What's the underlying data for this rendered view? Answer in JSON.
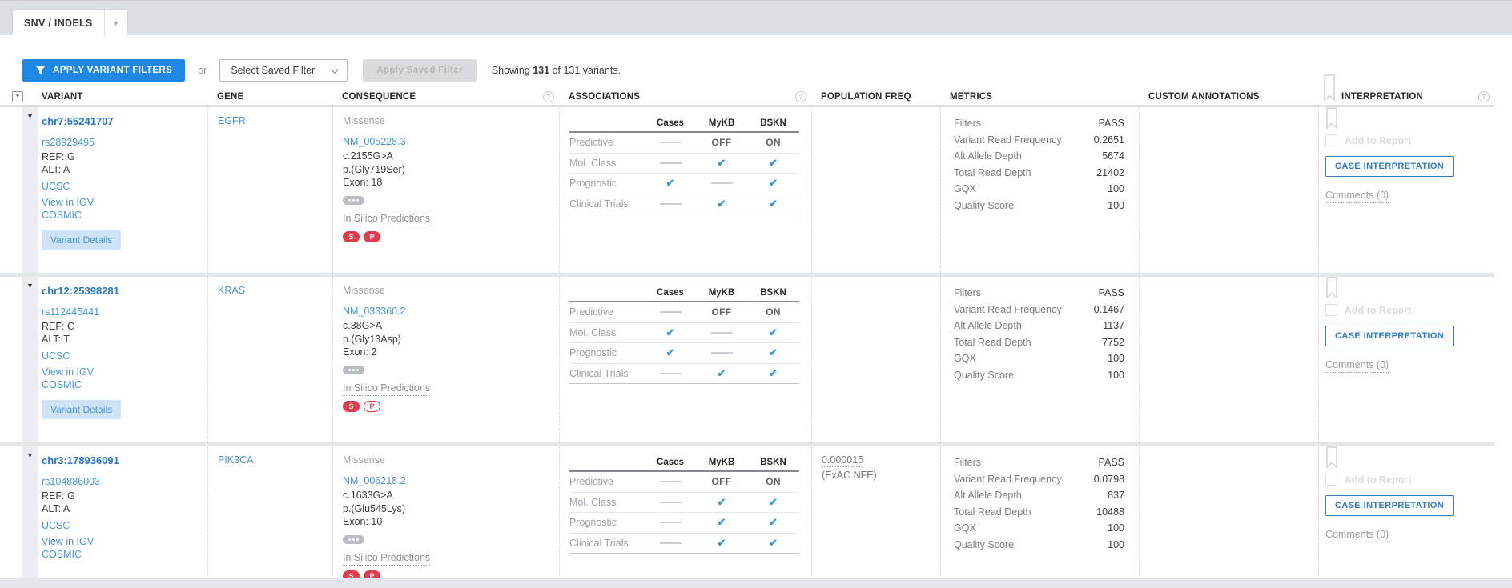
{
  "colors": {
    "accent-blue": "#1e88e5",
    "link-blue": "#4796d8",
    "locus-blue": "#2677c8",
    "check-blue": "#3598db",
    "badge-red": "#e23b4e"
  },
  "tab": {
    "label": "SNV / INDELS"
  },
  "filter_bar": {
    "apply_filters_label": "APPLY VARIANT FILTERS",
    "or_label": "or",
    "saved_filter_placeholder": "Select Saved Filter",
    "apply_saved_label": "Apply Saved Filter",
    "showing_prefix": "Showing",
    "showing_count": "131",
    "showing_suffix": "of 131 variants."
  },
  "table": {
    "headers": {
      "variant": "VARIANT",
      "gene": "GENE",
      "consequence": "CONSEQUENCE",
      "associations": "ASSOCIATIONS",
      "population_freq": "POPULATION FREQ",
      "metrics": "METRICS",
      "custom_annotations": "CUSTOM ANNOTATIONS",
      "interpretation": "INTERPRETATION"
    },
    "assoc_columns": [
      "Cases",
      "MyKB",
      "BSKN"
    ],
    "metrics_labels": [
      "Filters",
      "Variant Read Frequency",
      "Alt Allele Depth",
      "Total Read Depth",
      "GQX",
      "Quality Score"
    ],
    "row_links": {
      "ucsc": "UCSC",
      "igv": "View in IGV",
      "cosmic": "COSMIC",
      "details": "Variant Details",
      "insilico": "In Silico Predictions",
      "add_to_report": "Add to Report",
      "case_interpretation": "CASE INTERPRETATION",
      "comments": "Comments (0)"
    }
  },
  "rows": [
    {
      "variant": {
        "locus": "chr7:55241707",
        "rsid": "rs28929495",
        "ref": "REF: G",
        "alt": "ALT: A"
      },
      "gene": "EGFR",
      "consequence": {
        "type": "Missense",
        "transcript": "NM_005228.3",
        "cdna": "c.2155G>A",
        "protein": "p.(Gly719Ser)",
        "exon": "Exon: 18"
      },
      "badges": [
        {
          "label": "S",
          "variant": "solid"
        },
        {
          "label": "P",
          "variant": "solid"
        }
      ],
      "associations": [
        {
          "label": "Predictive",
          "cells": [
            "dash",
            "OFF",
            "ON"
          ]
        },
        {
          "label": "Mol. Class",
          "cells": [
            "dash",
            "check",
            "check"
          ]
        },
        {
          "label": "Prognostic",
          "cells": [
            "check",
            "dash",
            "check"
          ]
        },
        {
          "label": "Clinical Trials",
          "cells": [
            "dash",
            "check",
            "check"
          ]
        }
      ],
      "population_freq": null,
      "metrics_values": [
        "PASS",
        "0.2651",
        "5674",
        "21402",
        "100",
        "100"
      ]
    },
    {
      "variant": {
        "locus": "chr12:25398281",
        "rsid": "rs112445441",
        "ref": "REF: C",
        "alt": "ALT: T"
      },
      "gene": "KRAS",
      "consequence": {
        "type": "Missense",
        "transcript": "NM_033360.2",
        "cdna": "c.38G>A",
        "protein": "p.(Gly13Asp)",
        "exon": "Exon: 2"
      },
      "badges": [
        {
          "label": "S",
          "variant": "solid"
        },
        {
          "label": "P",
          "variant": "outline"
        }
      ],
      "associations": [
        {
          "label": "Predictive",
          "cells": [
            "dash",
            "OFF",
            "ON"
          ]
        },
        {
          "label": "Mol. Class",
          "cells": [
            "check",
            "dash",
            "check"
          ]
        },
        {
          "label": "Prognostic",
          "cells": [
            "check",
            "dash",
            "check"
          ]
        },
        {
          "label": "Clinical Trials",
          "cells": [
            "dash",
            "check",
            "check"
          ]
        }
      ],
      "population_freq": null,
      "metrics_values": [
        "PASS",
        "0.1467",
        "1137",
        "7752",
        "100",
        "100"
      ]
    },
    {
      "variant": {
        "locus": "chr3:178936091",
        "rsid": "rs104886003",
        "ref": "REF: G",
        "alt": "ALT: A"
      },
      "gene": "PIK3CA",
      "consequence": {
        "type": "Missense",
        "transcript": "NM_006218.2",
        "cdna": "c.1633G>A",
        "protein": "p.(Glu545Lys)",
        "exon": "Exon: 10"
      },
      "badges": [
        {
          "label": "S",
          "variant": "solid"
        },
        {
          "label": "P",
          "variant": "solid"
        }
      ],
      "associations": [
        {
          "label": "Predictive",
          "cells": [
            "dash",
            "OFF",
            "ON"
          ]
        },
        {
          "label": "Mol. Class",
          "cells": [
            "dash",
            "check",
            "check"
          ]
        },
        {
          "label": "Prognostic",
          "cells": [
            "dash",
            "check",
            "check"
          ]
        },
        {
          "label": "Clinical Trials",
          "cells": [
            "dash",
            "check",
            "check"
          ]
        }
      ],
      "population_freq": {
        "value": "0.000015",
        "source": "(ExAC NFE)"
      },
      "metrics_values": [
        "PASS",
        "0.0798",
        "837",
        "10488",
        "100",
        "100"
      ]
    }
  ]
}
